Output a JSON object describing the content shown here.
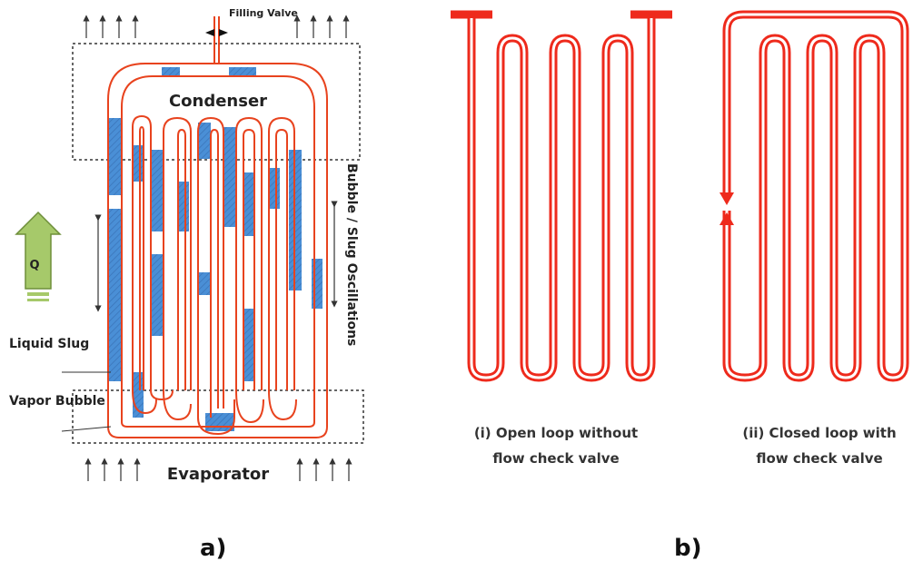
{
  "panel_a": {
    "letter": "a)",
    "filling_valve": "Filling Valve",
    "condenser": "Condenser",
    "evaporator": "Evaporator",
    "heat_label": "Q",
    "liquid_slug": "Liquid Slug",
    "vapor_bubble": "Vapor Bubble",
    "oscillation_label": "Bubble / Slug Oscillations"
  },
  "panel_b": {
    "letter": "b)",
    "open_loop_caption_1": "(i) Open loop without",
    "open_loop_caption_2": "flow check valve",
    "closed_loop_caption_1": "(ii) Closed loop with",
    "closed_loop_caption_2": "flow check valve"
  },
  "colors": {
    "tube": "#e8431e",
    "liquid": "#4a8fd6",
    "arrow_green": "#a6c96a",
    "pipe_red": "#ee2a1c"
  }
}
